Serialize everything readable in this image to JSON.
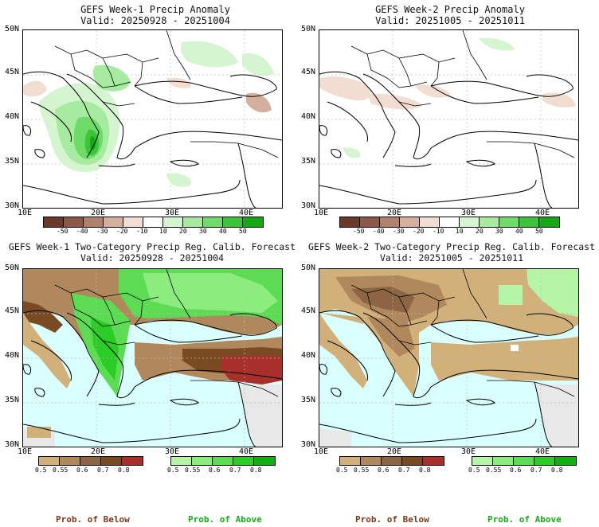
{
  "panels": [
    {
      "title_line1": "GEFS Week-1 Precip Anomaly",
      "title_line2": "Valid: 20250928 - 20251004"
    },
    {
      "title_line1": "GEFS Week-2 Precip Anomaly",
      "title_line2": "Valid: 20251005 - 20251011"
    },
    {
      "title_line1": "GEFS Week-1 Two-Category Precip Reg. Calib. Forecast",
      "title_line2": "Valid: 20250928 - 20251004"
    },
    {
      "title_line1": "GEFS Week-2 Two-Category Precip Reg. Calib. Forecast",
      "title_line2": "Valid: 20251005 - 20251011"
    }
  ],
  "axes": {
    "lat_labels": [
      "50N",
      "45N",
      "40N",
      "35N",
      "30N"
    ],
    "lon_labels": [
      "10E",
      "20E",
      "30E",
      "40E"
    ]
  },
  "anomaly_colorbar": {
    "labels": [
      "-50",
      "-40",
      "-30",
      "-20",
      "-10",
      "10",
      "20",
      "30",
      "40",
      "50"
    ],
    "colors": [
      "#6b3a2a",
      "#8c5a48",
      "#b0826e",
      "#d6b09e",
      "#f1ddd2",
      "#ffffff",
      "#d4f5cf",
      "#a6eba0",
      "#6fdc6a",
      "#3cc43a",
      "#14a814"
    ]
  },
  "prob_colorbar": {
    "below_labels": [
      "0.5",
      "0.55",
      "0.6",
      "0.7",
      "0.8"
    ],
    "above_labels": [
      "0.5",
      "0.55",
      "0.6",
      "0.7",
      "0.8"
    ],
    "below_colors": [
      "#d2b07a",
      "#b0885c",
      "#8c6644",
      "#7a4a22",
      "#a8302a"
    ],
    "above_colors": [
      "#b4f5a8",
      "#8cec7e",
      "#5cdc52",
      "#2ccc26",
      "#10b010"
    ]
  },
  "footer": {
    "below_text": "Prob. of Below",
    "above_text": "Prob. of Above",
    "below_color": "#7a3a1a",
    "above_color": "#18a818"
  }
}
